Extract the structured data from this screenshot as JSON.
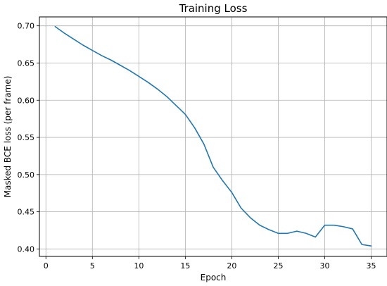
{
  "chart_data": {
    "type": "line",
    "title": "Training Loss",
    "xlabel": "Epoch",
    "ylabel": "Masked BCE loss (per frame)",
    "xlim": [
      -0.7,
      36.7
    ],
    "ylim": [
      0.39,
      0.712
    ],
    "xticks": [
      0,
      5,
      10,
      15,
      20,
      25,
      30,
      35
    ],
    "yticks": [
      0.4,
      0.45,
      0.5,
      0.55,
      0.6,
      0.65,
      0.7
    ],
    "xtick_labels": [
      "0",
      "5",
      "10",
      "15",
      "20",
      "25",
      "30",
      "35"
    ],
    "ytick_labels": [
      "0.40",
      "0.45",
      "0.50",
      "0.55",
      "0.60",
      "0.65",
      "0.70"
    ],
    "grid": true,
    "series": [
      {
        "color": "#1f77b4",
        "x": [
          1,
          2,
          3,
          4,
          5,
          6,
          7,
          8,
          9,
          10,
          11,
          12,
          13,
          14,
          15,
          16,
          17,
          18,
          19,
          20,
          21,
          22,
          23,
          24,
          25,
          26,
          27,
          28,
          29,
          30,
          31,
          32,
          33,
          34,
          35
        ],
        "y": [
          0.699,
          0.69,
          0.682,
          0.674,
          0.667,
          0.66,
          0.654,
          0.647,
          0.64,
          0.632,
          0.624,
          0.615,
          0.605,
          0.593,
          0.581,
          0.563,
          0.541,
          0.51,
          0.492,
          0.476,
          0.455,
          0.442,
          0.432,
          0.426,
          0.421,
          0.421,
          0.424,
          0.421,
          0.416,
          0.432,
          0.432,
          0.43,
          0.427,
          0.406,
          0.404
        ]
      }
    ]
  }
}
